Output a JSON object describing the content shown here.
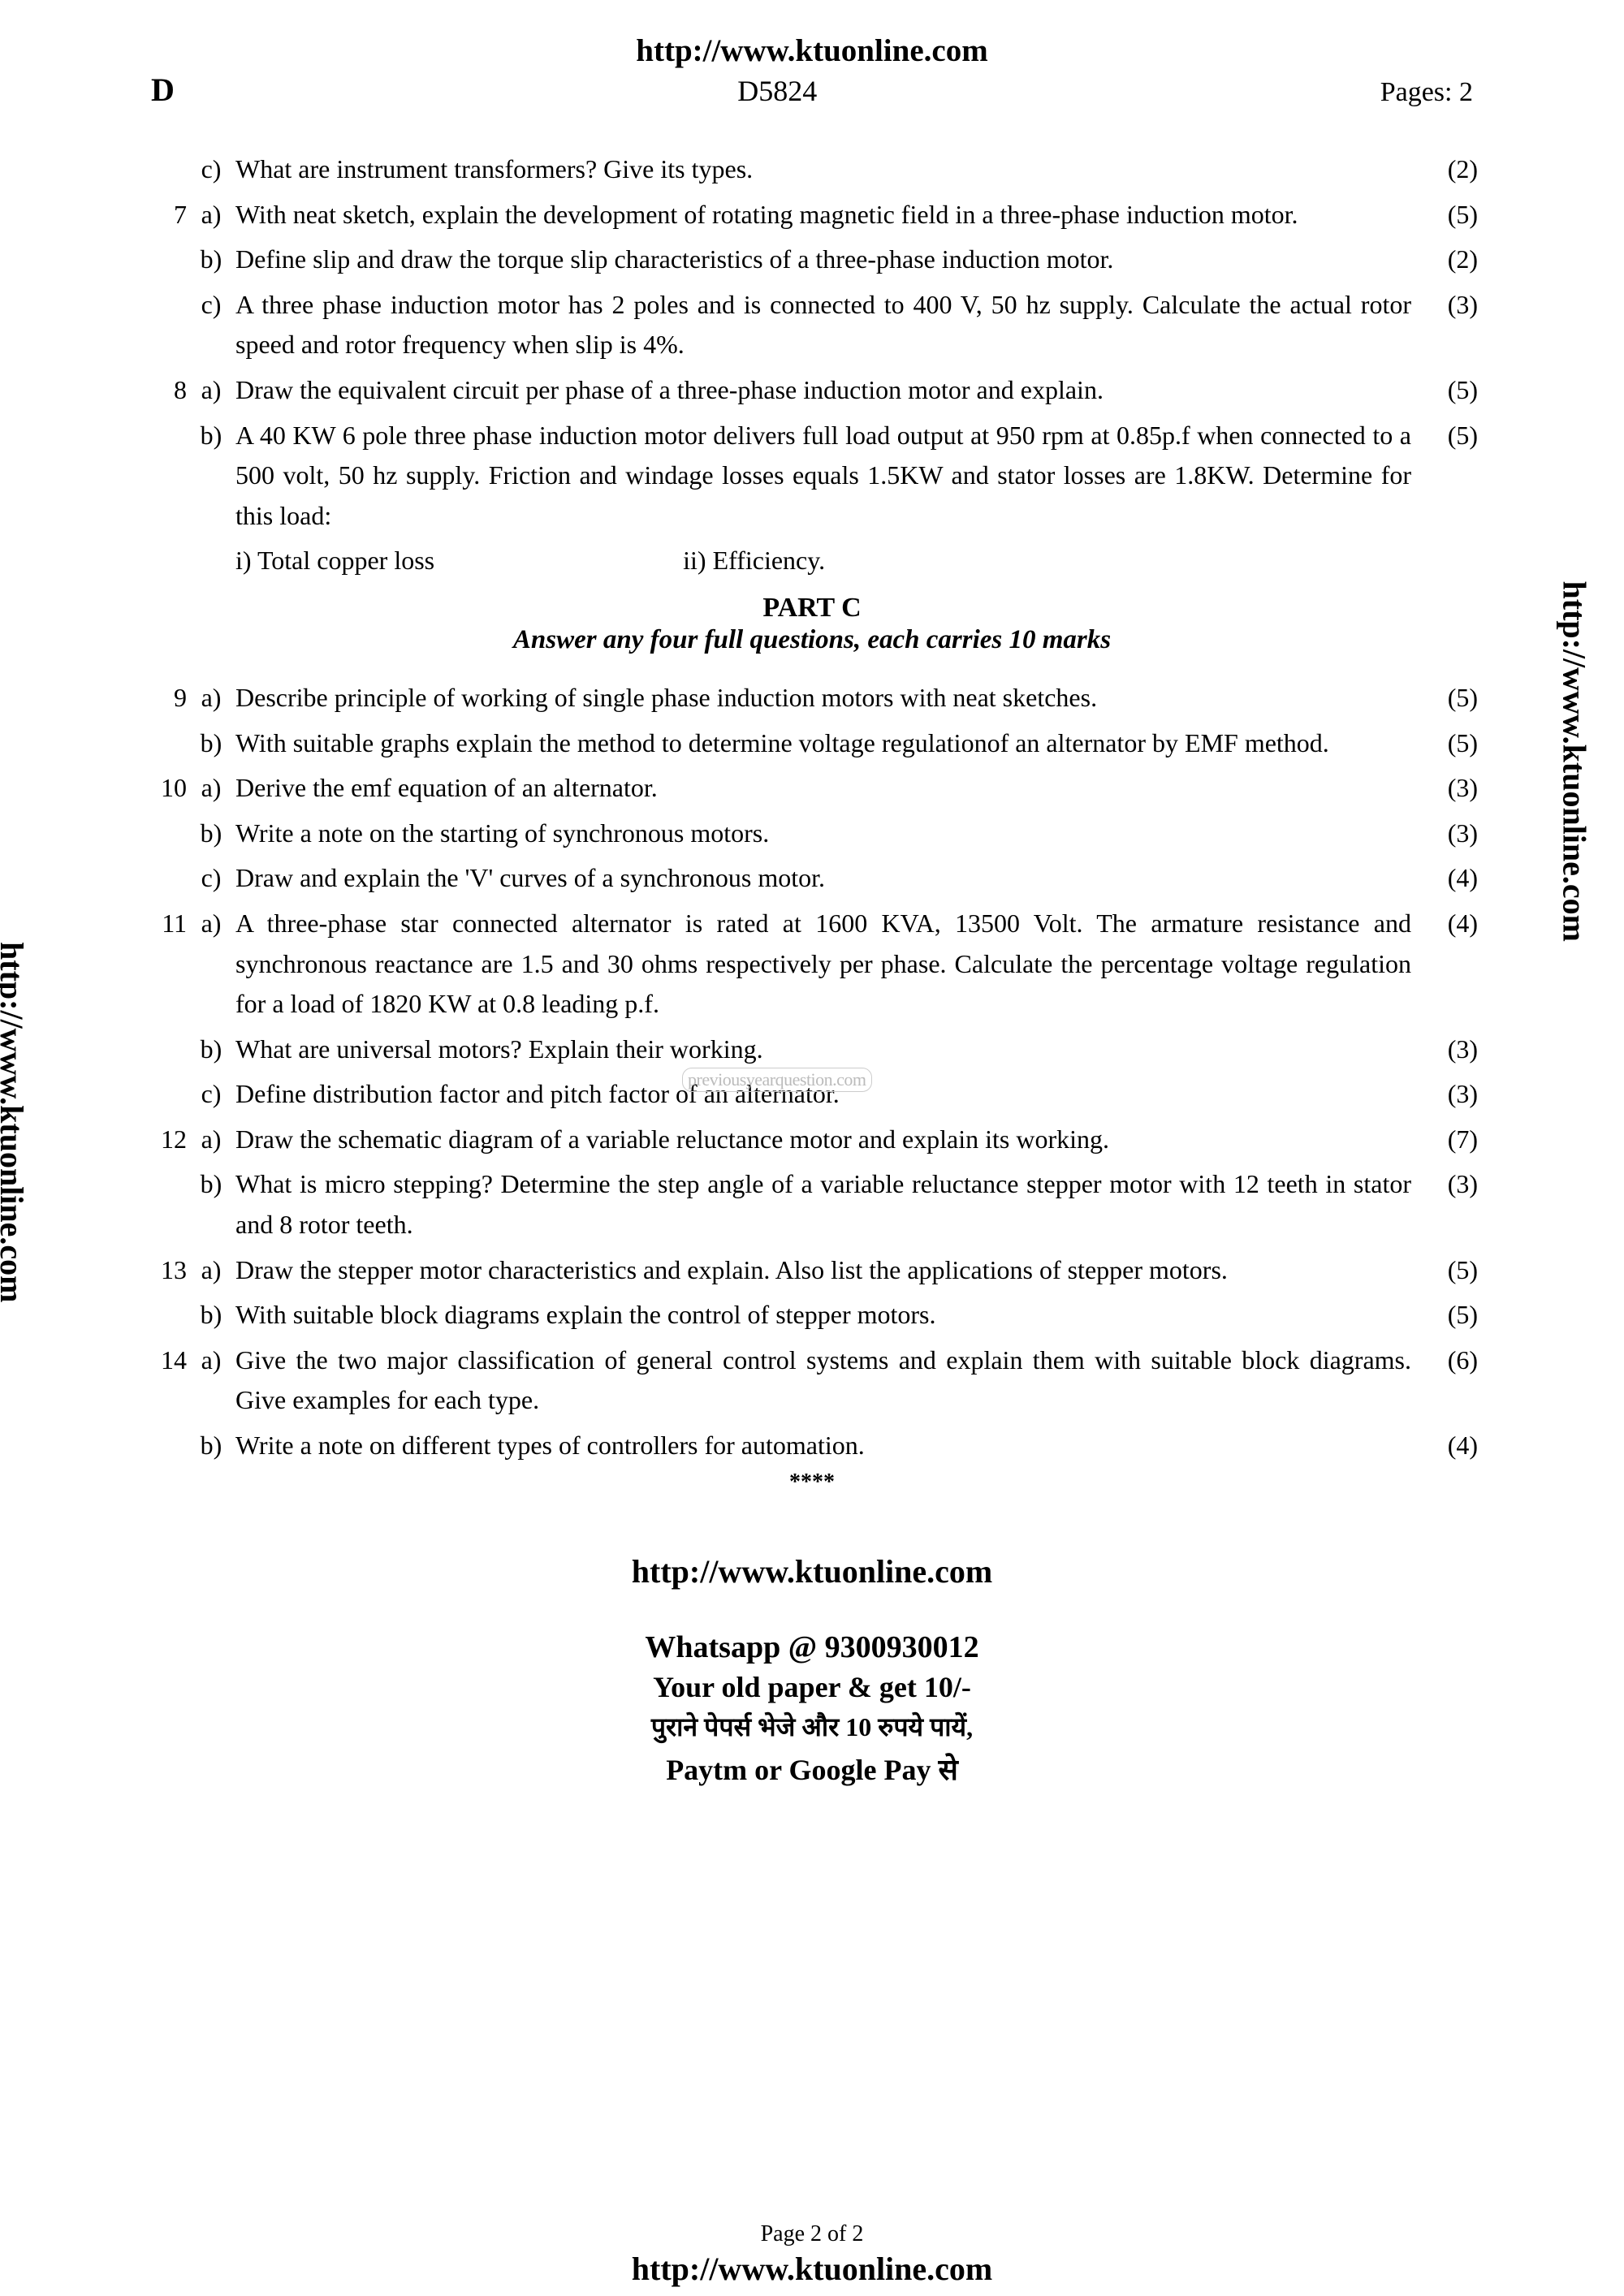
{
  "header": {
    "url": "http://www.ktuonline.com",
    "left": "D",
    "center": "D5824",
    "right": "Pages: 2"
  },
  "side_label": "http://www.ktuonline.com",
  "watermark": "previousyearquestion.com",
  "questions_top": [
    {
      "num": "",
      "sub": "c)",
      "text": "What are instrument transformers? Give its types.",
      "marks": "(2)"
    },
    {
      "num": "7",
      "sub": "a)",
      "text": "With neat sketch, explain the development of rotating magnetic field in a three-phase induction motor.",
      "marks": "(5)"
    },
    {
      "num": "",
      "sub": "b)",
      "text": "Define slip and draw the torque slip characteristics of a three-phase induction motor.",
      "marks": "(2)"
    },
    {
      "num": "",
      "sub": "c)",
      "text": "A three phase induction motor has 2 poles and is connected to 400 V, 50 hz supply. Calculate the actual rotor speed and rotor frequency when slip is 4%.",
      "marks": "(3)"
    },
    {
      "num": "8",
      "sub": "a)",
      "text": "Draw the equivalent circuit per phase of a three-phase induction motor and explain.",
      "marks": "(5)"
    },
    {
      "num": "",
      "sub": "b)",
      "text": "A 40 KW 6 pole three phase induction motor delivers full load output at 950 rpm at 0.85p.f when connected to a 500 volt, 50 hz supply. Friction and windage losses equals 1.5KW and stator losses are 1.8KW. Determine for this load:",
      "marks": "(5)"
    }
  ],
  "q8b_sub": {
    "i": "i) Total copper loss",
    "ii": "ii) Efficiency."
  },
  "part_c": {
    "title": "PART C",
    "subtitle": "Answer any four full questions, each carries 10 marks"
  },
  "questions_c": [
    {
      "num": "9",
      "sub": "a)",
      "text": "Describe principle of working of single phase induction motors with neat sketches.",
      "marks": "(5)"
    },
    {
      "num": "",
      "sub": "b)",
      "text": "With suitable graphs explain the method to determine voltage regulationof an alternator by EMF method.",
      "marks": "(5)"
    },
    {
      "num": "10",
      "sub": "a)",
      "text": "Derive the emf equation of an alternator.",
      "marks": "(3)"
    },
    {
      "num": "",
      "sub": "b)",
      "text": "Write a note on the starting of synchronous motors.",
      "marks": "(3)"
    },
    {
      "num": "",
      "sub": "c)",
      "text": "Draw and explain the 'V' curves of a synchronous motor.",
      "marks": "(4)"
    },
    {
      "num": "11",
      "sub": "a)",
      "text": "A three-phase star connected alternator is rated at 1600 KVA, 13500 Volt. The armature resistance and synchronous reactance are 1.5 and 30 ohms respectively per phase. Calculate the percentage voltage regulation for a load of 1820 KW at 0.8 leading p.f.",
      "marks": "(4)"
    },
    {
      "num": "",
      "sub": "b)",
      "text": "What are universal motors? Explain their working.",
      "marks": "(3)"
    },
    {
      "num": "",
      "sub": "c)",
      "text": "Define distribution factor and pitch factor of an alternator.",
      "marks": "(3)"
    },
    {
      "num": "12",
      "sub": "a)",
      "text": "Draw the schematic diagram of a variable reluctance motor and explain its working.",
      "marks": "(7)"
    },
    {
      "num": "",
      "sub": "b)",
      "text": "What is micro stepping?  Determine the step angle of a variable reluctance stepper motor with 12 teeth in stator and 8 rotor teeth.",
      "marks": "(3)"
    },
    {
      "num": "13",
      "sub": "a)",
      "text": "Draw the stepper motor characteristics and explain. Also list the applications of stepper motors.",
      "marks": "(5)"
    },
    {
      "num": "",
      "sub": "b)",
      "text": "With suitable block diagrams explain the control of stepper motors.",
      "marks": "(5)"
    },
    {
      "num": "14",
      "sub": "a)",
      "text": "Give the two major classification of general control systems and explain them with suitable block diagrams. Give examples for each type.",
      "marks": "(6)"
    },
    {
      "num": "",
      "sub": "b)",
      "text": "Write a note on different types of controllers for automation.",
      "marks": "(4)"
    }
  ],
  "stars": "****",
  "footer": {
    "url1": "http://www.ktuonline.com",
    "whatsapp": "Whatsapp @ 9300930012",
    "line2": "Your old paper & get 10/-",
    "hindi": "पुराने पेपर्स भेजे और 10 रुपये पायें,",
    "paytm": "Paytm or Google Pay से",
    "page_num": "Page 2 of 2",
    "url2": "http://www.ktuonline.com"
  }
}
